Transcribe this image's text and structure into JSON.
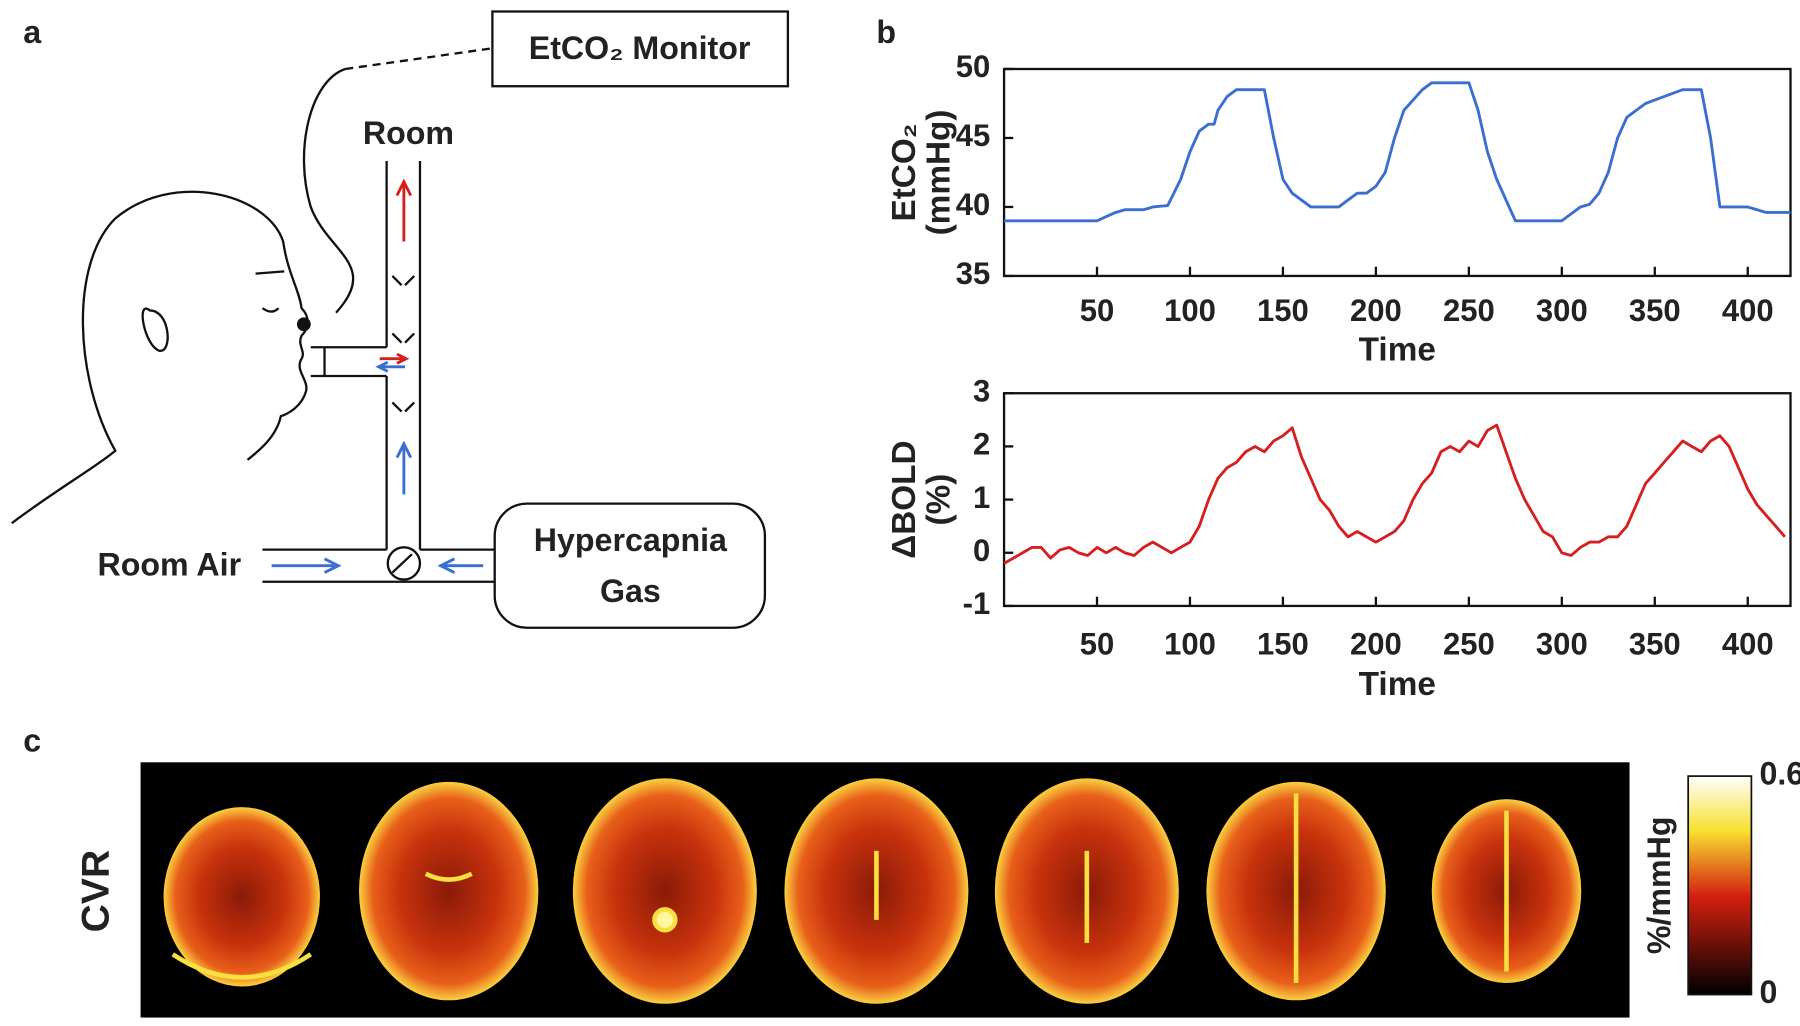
{
  "panel_labels": [
    "a",
    "b",
    "c"
  ],
  "diagram": {
    "monitor": "EtCO₂ Monitor",
    "room": "Room",
    "room_air": "Room Air",
    "gas": [
      "Hypercapnia",
      "Gas"
    ]
  },
  "cvr": {
    "label": "CVR",
    "colorbar_ticks": [
      0,
      0.6
    ],
    "colorbar_label": "%/mmHg"
  },
  "chart_data": [
    {
      "type": "line",
      "xlabel": "Time",
      "ylabel": [
        "EtCO₂",
        "(mmHg)"
      ],
      "color": "#3a6fd0",
      "x": [
        0,
        50,
        55,
        60,
        65,
        75,
        80,
        88,
        95,
        100,
        105,
        110,
        113,
        115,
        120,
        125,
        135,
        140,
        145,
        150,
        155,
        160,
        165,
        180,
        185,
        190,
        195,
        200,
        205,
        210,
        215,
        225,
        230,
        250,
        255,
        260,
        265,
        275,
        300,
        305,
        310,
        315,
        320,
        325,
        330,
        335,
        345,
        355,
        365,
        375,
        380,
        385,
        400,
        405,
        410,
        423
      ],
      "values": [
        39,
        39,
        39.3,
        39.6,
        39.8,
        39.8,
        40,
        40.1,
        42,
        44,
        45.5,
        46,
        46,
        47,
        48,
        48.5,
        48.5,
        48.5,
        45,
        42,
        41,
        40.5,
        40,
        40,
        40.5,
        41,
        41,
        41.5,
        42.5,
        45,
        47,
        48.5,
        49,
        49,
        47,
        44,
        42,
        39,
        39,
        39.5,
        40,
        40.2,
        41,
        42.5,
        45,
        46.5,
        47.5,
        48,
        48.5,
        48.5,
        45,
        40,
        40,
        39.8,
        39.6,
        39.6
      ],
      "xlim": [
        0,
        423
      ],
      "xticks": [
        50,
        100,
        150,
        200,
        250,
        300,
        350,
        400
      ],
      "ylim": [
        35,
        50
      ],
      "yticks": [
        35,
        40,
        45,
        50
      ]
    },
    {
      "type": "line",
      "xlabel": "Time",
      "ylabel": [
        "ΔBOLD",
        "(%)"
      ],
      "color": "#d42020",
      "x": [
        0,
        5,
        10,
        15,
        20,
        25,
        30,
        35,
        40,
        45,
        50,
        55,
        60,
        65,
        70,
        75,
        80,
        85,
        90,
        95,
        100,
        105,
        110,
        115,
        120,
        125,
        130,
        135,
        140,
        145,
        150,
        155,
        160,
        165,
        170,
        175,
        180,
        185,
        190,
        195,
        200,
        205,
        210,
        215,
        220,
        225,
        230,
        235,
        240,
        245,
        250,
        255,
        260,
        265,
        270,
        275,
        280,
        285,
        290,
        295,
        300,
        305,
        310,
        315,
        320,
        325,
        330,
        335,
        340,
        345,
        350,
        355,
        360,
        365,
        370,
        375,
        380,
        385,
        390,
        395,
        400,
        405,
        410,
        415,
        420
      ],
      "values": [
        -0.2,
        -0.1,
        0.0,
        0.1,
        0.1,
        -0.1,
        0.05,
        0.1,
        0.0,
        -0.05,
        0.1,
        0.0,
        0.1,
        0.0,
        -0.05,
        0.1,
        0.2,
        0.1,
        0.0,
        0.1,
        0.2,
        0.5,
        1.0,
        1.4,
        1.6,
        1.7,
        1.9,
        2.0,
        1.9,
        2.1,
        2.2,
        2.35,
        1.8,
        1.4,
        1.0,
        0.8,
        0.5,
        0.3,
        0.4,
        0.3,
        0.2,
        0.3,
        0.4,
        0.6,
        1.0,
        1.3,
        1.5,
        1.9,
        2.0,
        1.9,
        2.1,
        2.0,
        2.3,
        2.4,
        1.9,
        1.4,
        1.0,
        0.7,
        0.4,
        0.3,
        0.0,
        -0.05,
        0.1,
        0.2,
        0.2,
        0.3,
        0.3,
        0.5,
        0.9,
        1.3,
        1.5,
        1.7,
        1.9,
        2.1,
        2.0,
        1.9,
        2.1,
        2.2,
        2.0,
        1.6,
        1.2,
        0.9,
        0.7,
        0.5,
        0.3
      ],
      "xlim": [
        0,
        423
      ],
      "xticks": [
        50,
        100,
        150,
        200,
        250,
        300,
        350,
        400
      ],
      "ylim": [
        -1,
        3
      ],
      "yticks": [
        -1,
        0,
        1,
        2,
        3
      ]
    }
  ]
}
